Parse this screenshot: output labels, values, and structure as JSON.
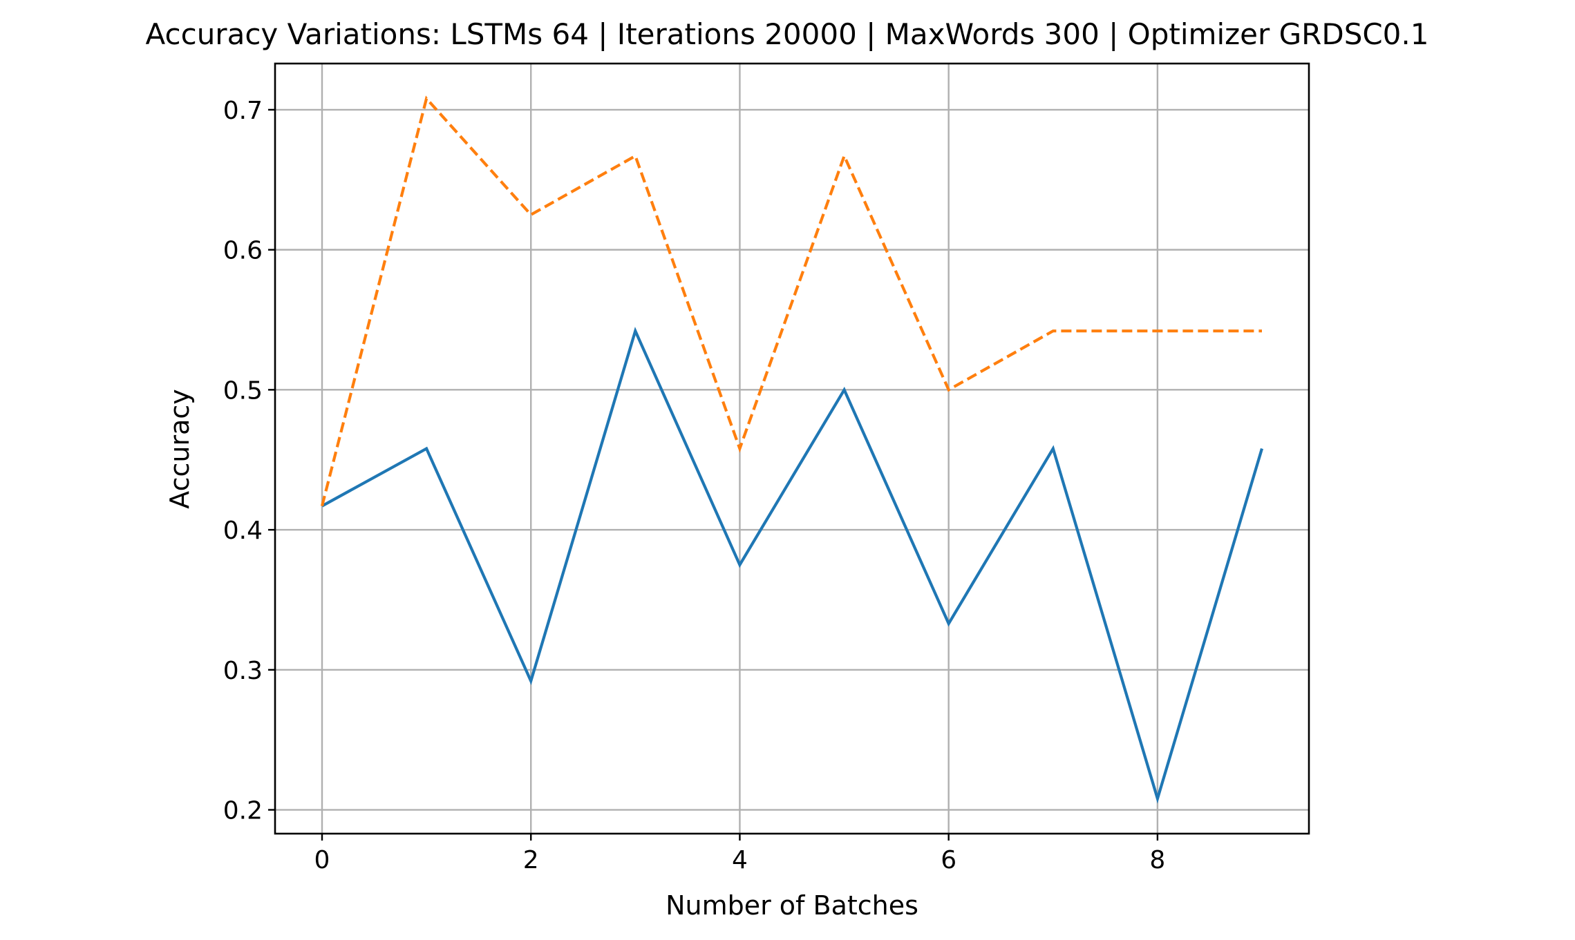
{
  "chart_data": {
    "type": "line",
    "title": "Accuracy Variations: LSTMs 64 | Iterations 20000 | MaxWords 300 | Optimizer GRDSC0.1",
    "xlabel": "Number of Batches",
    "ylabel": "Accuracy",
    "x": [
      0,
      1,
      2,
      3,
      4,
      5,
      6,
      7,
      8,
      9
    ],
    "xlim": [
      -0.45,
      9.45
    ],
    "ylim": [
      0.183,
      0.733
    ],
    "xticks": [
      0,
      2,
      4,
      6,
      8
    ],
    "xtick_labels": [
      "0",
      "2",
      "4",
      "6",
      "8"
    ],
    "yticks": [
      0.2,
      0.3,
      0.4,
      0.5,
      0.6,
      0.7
    ],
    "ytick_labels": [
      "0.2",
      "0.3",
      "0.4",
      "0.5",
      "0.6",
      "0.7"
    ],
    "grid": true,
    "series": [
      {
        "values": [
          0.417,
          0.458,
          0.292,
          0.542,
          0.375,
          0.5,
          0.333,
          0.458,
          0.208,
          0.458
        ],
        "color": "#1f77b4",
        "linestyle": "solid"
      },
      {
        "values": [
          0.417,
          0.708,
          0.625,
          0.667,
          0.458,
          0.667,
          0.5,
          0.542,
          0.542,
          0.542
        ],
        "color": "#ff7f0e",
        "linestyle": "dashed"
      }
    ]
  }
}
